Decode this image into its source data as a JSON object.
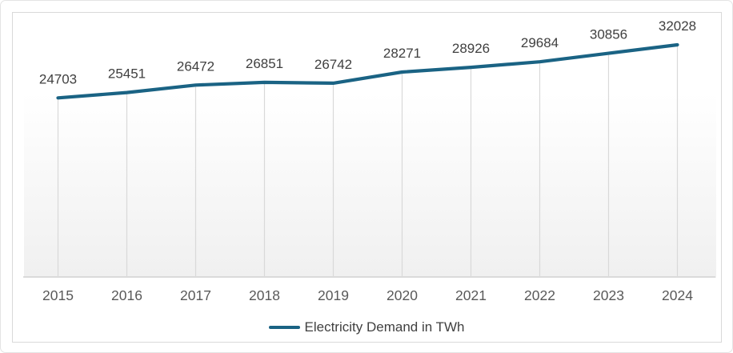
{
  "chart_data": {
    "type": "line",
    "title": "",
    "categories": [
      "2015",
      "2016",
      "2017",
      "2018",
      "2019",
      "2020",
      "2021",
      "2022",
      "2023",
      "2024"
    ],
    "series": [
      {
        "name": "Electricity Demand in TWh",
        "values": [
          24703,
          25451,
          26472,
          26851,
          26742,
          28271,
          28926,
          29684,
          30856,
          32028
        ],
        "color": "#1A6384"
      }
    ],
    "xlabel": "",
    "ylabel": "",
    "ylim": [
      0,
      32028
    ],
    "grid": "vertical drop lines from each point to x-axis",
    "data_labels_shown": true,
    "legend_position": "bottom-center"
  },
  "legend": {
    "label": "Electricity Demand in TWh"
  },
  "colors": {
    "line": "#1A6384",
    "data_label": "#404040",
    "axis_label": "#595959",
    "drop_line": "#d9d9d9",
    "axis_line": "#d2d2d2",
    "frame_border": "#d9d9d9",
    "card_border": "#e4e4e4"
  }
}
